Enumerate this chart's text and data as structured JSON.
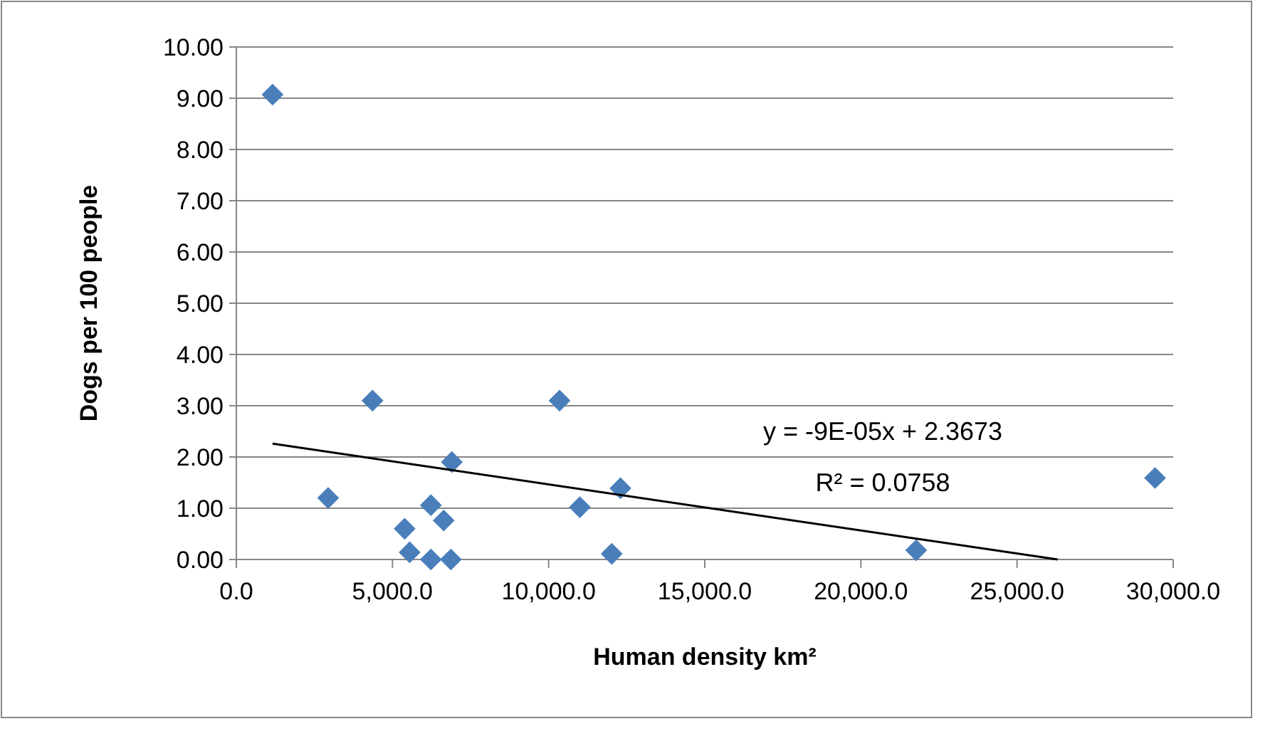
{
  "chart_data": {
    "type": "scatter",
    "xlabel": "Human density km²",
    "ylabel": "Dogs per 100 people",
    "xlim": [
      0,
      30000
    ],
    "xticks": [
      {
        "value": 0,
        "label": "0.0"
      },
      {
        "value": 5000,
        "label": "5,000.0"
      },
      {
        "value": 10000,
        "label": "10,000.0"
      },
      {
        "value": 15000,
        "label": "15,000.0"
      },
      {
        "value": 20000,
        "label": "20,000.0"
      },
      {
        "value": 25000,
        "label": "25,000.0"
      },
      {
        "value": 30000,
        "label": "30,000.0"
      }
    ],
    "ylim": [
      0,
      10
    ],
    "yticks": [
      {
        "value": 0,
        "label": "0.00"
      },
      {
        "value": 1,
        "label": "1.00"
      },
      {
        "value": 2,
        "label": "2.00"
      },
      {
        "value": 3,
        "label": "3.00"
      },
      {
        "value": 4,
        "label": "4.00"
      },
      {
        "value": 5,
        "label": "5.00"
      },
      {
        "value": 6,
        "label": "6.00"
      },
      {
        "value": 7,
        "label": "7.00"
      },
      {
        "value": 8,
        "label": "8.00"
      },
      {
        "value": 9,
        "label": "9.00"
      },
      {
        "value": 10,
        "label": "10.00"
      }
    ],
    "grid": "y",
    "marker": "diamond",
    "series": [
      {
        "color": "#4a7ebb",
        "x": [
          1160,
          2940,
          4360,
          5390,
          5550,
          6230,
          6230,
          6640,
          6870,
          6900,
          10350,
          11000,
          12020,
          12300,
          21770,
          29420
        ],
        "values": [
          9.07,
          1.2,
          3.1,
          0.6,
          0.14,
          1.06,
          0,
          0.76,
          0,
          1.9,
          3.1,
          1.02,
          0.11,
          1.39,
          0.18,
          1.59
        ]
      },
      {
        "type": "line",
        "color": "#000000",
        "marker": "none",
        "x": [
          1160,
          26300
        ],
        "values": [
          2.26,
          0
        ]
      }
    ],
    "annotations": [
      "y = -9E-05x + 2.3673",
      "R² = 0.0758"
    ]
  }
}
